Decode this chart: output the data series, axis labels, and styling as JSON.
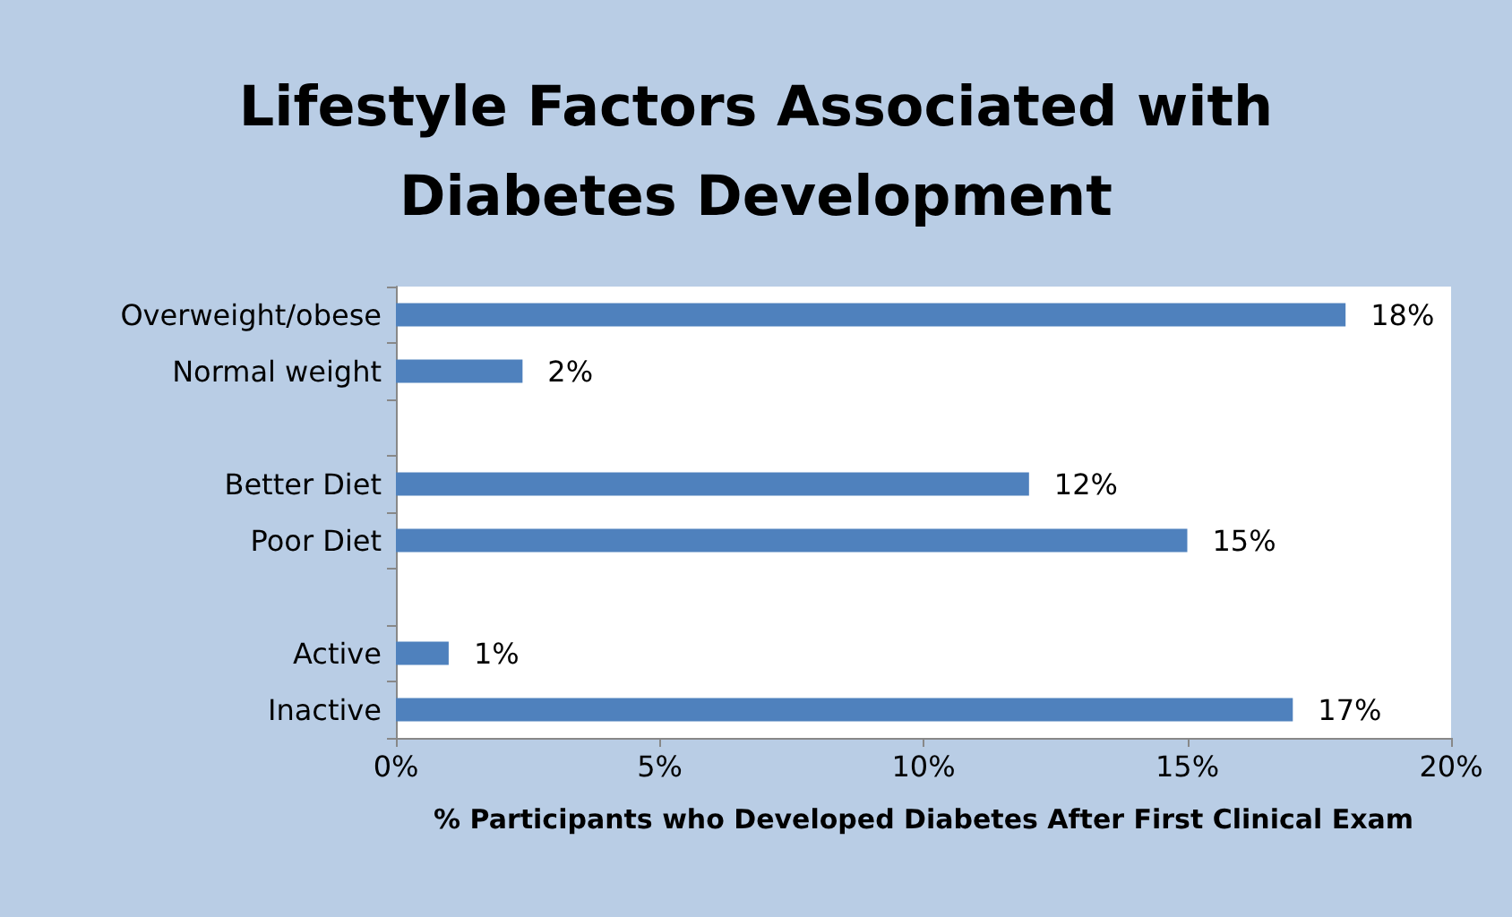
{
  "chart_data": {
    "type": "bar",
    "orientation": "horizontal",
    "title": "Lifestyle Factors Associated with\nDiabetes Development",
    "xlabel": "% Participants who Developed Diabetes After First Clinical Exam",
    "categories": [
      "Overweight/obese",
      "Normal weight",
      null,
      "Better Diet",
      "Poor Diet",
      null,
      "Active",
      "Inactive"
    ],
    "values": [
      18,
      2.4,
      null,
      12,
      15,
      null,
      1,
      17
    ],
    "value_labels": [
      "18%",
      "2%",
      null,
      "12%",
      "15%",
      null,
      "1%",
      "17%"
    ],
    "color": "#4f81bd",
    "xlim": [
      0,
      20
    ],
    "xticks": [
      {
        "value": 0,
        "label": "0%"
      },
      {
        "value": 5,
        "label": "5%"
      },
      {
        "value": 10,
        "label": "10%"
      },
      {
        "value": 15,
        "label": "15%"
      },
      {
        "value": 20,
        "label": "20%"
      }
    ],
    "grid": false
  }
}
